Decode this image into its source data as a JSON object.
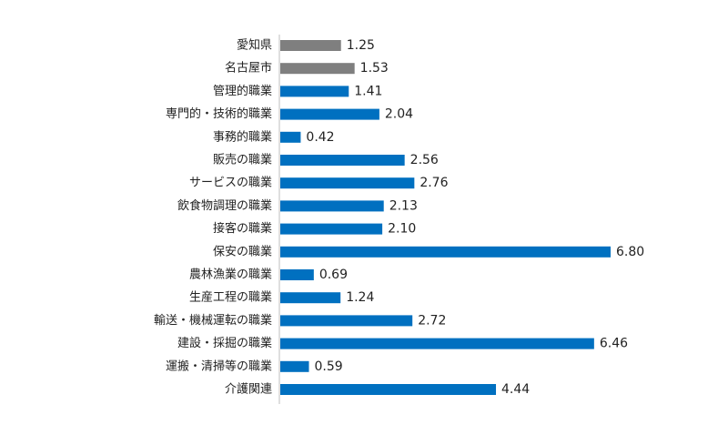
{
  "chart_data": {
    "type": "bar",
    "orientation": "horizontal",
    "title": "",
    "xlabel": "",
    "ylabel": "",
    "xlim": [
      0,
      7
    ],
    "grid": false,
    "legend": "none",
    "categories": [
      "愛知県",
      "名古屋市",
      "管理的職業",
      "専門的・技術的職業",
      "事務的職業",
      "販売の職業",
      "サービスの職業",
      "飲食物調理の職業",
      "接客の職業",
      "保安の職業",
      "農林漁業の職業",
      "生産工程の職業",
      "輸送・機械運転の職業",
      "建設・採掘の職業",
      "運搬・清掃等の職業",
      "介護関連"
    ],
    "values": [
      1.25,
      1.53,
      1.41,
      2.04,
      0.42,
      2.56,
      2.76,
      2.13,
      2.1,
      6.8,
      0.69,
      1.24,
      2.72,
      6.46,
      0.59,
      4.44
    ],
    "value_labels": [
      "1.25",
      "1.53",
      "1.41",
      "2.04",
      "0.42",
      "2.56",
      "2.76",
      "2.13",
      "2.10",
      "6.80",
      "0.69",
      "1.24",
      "2.72",
      "6.46",
      "0.59",
      "4.44"
    ],
    "bar_colors": [
      "#7f7f7f",
      "#7f7f7f",
      "#0070c0",
      "#0070c0",
      "#0070c0",
      "#0070c0",
      "#0070c0",
      "#0070c0",
      "#0070c0",
      "#0070c0",
      "#0070c0",
      "#0070c0",
      "#0070c0",
      "#0070c0",
      "#0070c0",
      "#0070c0"
    ],
    "axis_color": "#bfbfbf"
  }
}
